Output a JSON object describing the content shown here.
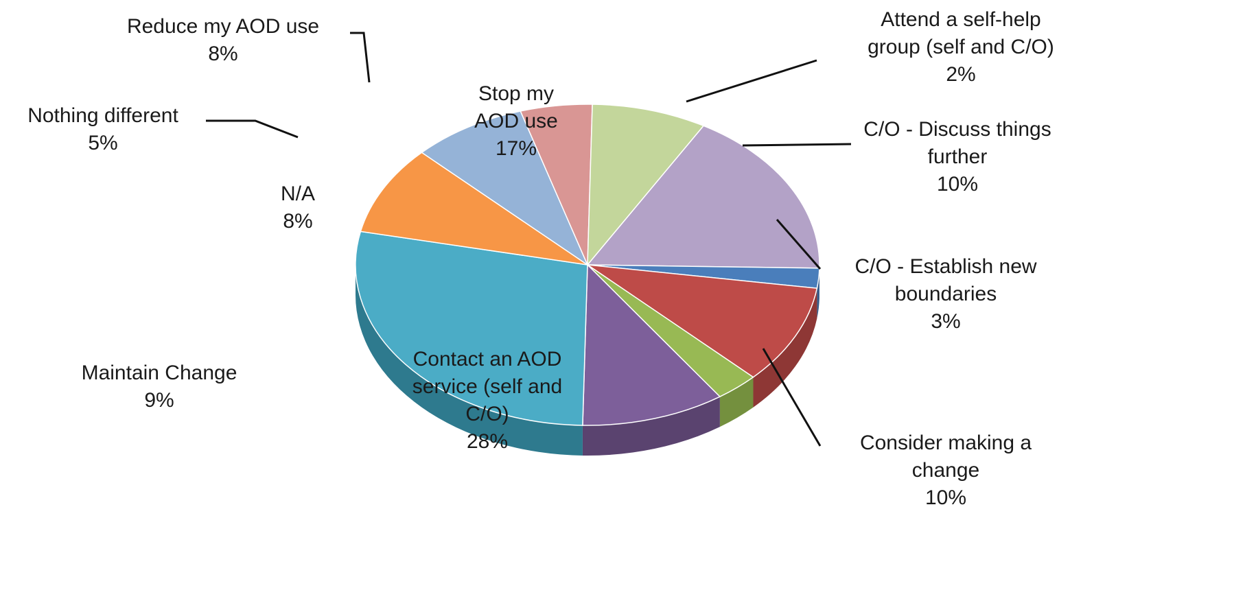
{
  "chart_data": {
    "type": "pie",
    "title": "",
    "style": "3d-exploded-flat",
    "slices": [
      {
        "label": "Stop my AOD use",
        "value": 17,
        "display": "17%",
        "color": "#B3A2C7",
        "side": "#8E7DA3",
        "label_lines": [
          "Stop my",
          "AOD use"
        ],
        "label_position": "inside"
      },
      {
        "label": "Attend a self-help group (self and C/O)",
        "value": 2,
        "display": "2%",
        "color": "#4A7EBB",
        "side": "#355C8A",
        "label_lines": [
          "Attend a self-help",
          "group (self and C/O)"
        ],
        "label_position": "outside"
      },
      {
        "label": "C/O - Discuss things further",
        "value": 10,
        "display": "10%",
        "color": "#BE4B48",
        "side": "#8E3735",
        "label_lines": [
          "C/O - Discuss things",
          "further"
        ],
        "label_position": "outside"
      },
      {
        "label": "C/O - Establish new boundaries",
        "value": 3,
        "display": "3%",
        "color": "#98B954",
        "side": "#74903E",
        "label_lines": [
          "C/O - Establish new",
          "boundaries"
        ],
        "label_position": "outside"
      },
      {
        "label": "Consider making a change",
        "value": 10,
        "display": "10%",
        "color": "#7D5F9A",
        "side": "#5A436F",
        "label_lines": [
          "Consider making a",
          "change"
        ],
        "label_position": "outside"
      },
      {
        "label": "Contact an AOD service (self and C/O)",
        "value": 28,
        "display": "28%",
        "color": "#4BACC6",
        "side": "#2E7A8E",
        "label_lines": [
          "Contact an AOD",
          "service (self and",
          "C/O)"
        ],
        "label_position": "inside"
      },
      {
        "label": "Maintain Change",
        "value": 9,
        "display": "9%",
        "color": "#F79646",
        "side": "#C26F2C",
        "label_lines": [
          "Maintain Change"
        ],
        "label_position": "outside"
      },
      {
        "label": "N/A",
        "value": 8,
        "display": "8%",
        "color": "#95B3D7",
        "side": "#6F8CB0",
        "label_lines": [
          "N/A"
        ],
        "label_position": "inside"
      },
      {
        "label": "Nothing different",
        "value": 5,
        "display": "5%",
        "color": "#D99694",
        "side": "#B06F6D",
        "label_lines": [
          "Nothing different"
        ],
        "label_position": "outside"
      },
      {
        "label": "Reduce my AOD use",
        "value": 8,
        "display": "8%",
        "color": "#C3D69B",
        "side": "#9CB078",
        "label_lines": [
          "Reduce my AOD use"
        ],
        "label_position": "outside"
      }
    ]
  }
}
